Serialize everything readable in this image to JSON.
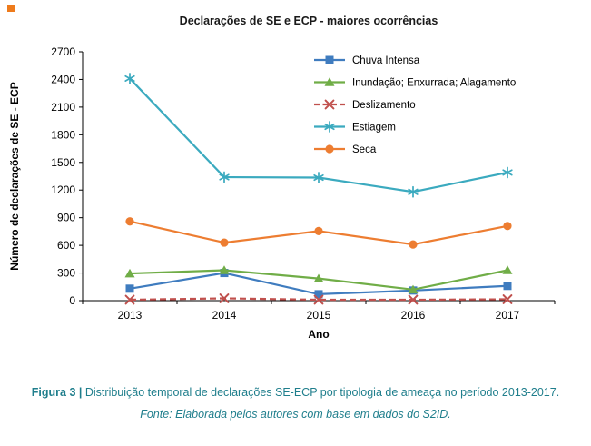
{
  "page": {
    "accent_square_color": "#EE7B1C"
  },
  "caption": {
    "label": "Figura 3 |",
    "text": "Distribuição temporal de declarações SE-ECP por tipologia de ameaça no período 2013-2017.",
    "source": "Fonte: Elaborada pelos autores com base em dados do S2ID.",
    "color": "#1F7E8C"
  },
  "chart_data": {
    "type": "line",
    "title": "Declarações de SE e ECP - maiores ocorrências",
    "xlabel": "Ano",
    "ylabel": "Número de declarações de SE - ECP",
    "categories": [
      "2013",
      "2014",
      "2015",
      "2016",
      "2017"
    ],
    "ylim": [
      0,
      2700
    ],
    "ytick_step": 300,
    "grid": false,
    "legend_position": "inside-top-right",
    "series": [
      {
        "name": "Chuva Intensa",
        "color": "#3F7CBF",
        "marker": "square",
        "line": "solid",
        "values": [
          130,
          300,
          70,
          110,
          160
        ]
      },
      {
        "name": "Inundação; Enxurrada; Alagamento",
        "color": "#70AD47",
        "marker": "triangle",
        "line": "solid",
        "values": [
          295,
          330,
          240,
          120,
          330
        ]
      },
      {
        "name": "Deslizamento",
        "color": "#C0504D",
        "marker": "x",
        "line": "dashed",
        "values": [
          10,
          25,
          10,
          10,
          15
        ]
      },
      {
        "name": "Estiagem",
        "color": "#3BAABF",
        "marker": "asterisk",
        "line": "solid",
        "values": [
          2410,
          1340,
          1335,
          1180,
          1390
        ]
      },
      {
        "name": "Seca",
        "color": "#ED7D31",
        "marker": "circle",
        "line": "solid",
        "values": [
          860,
          630,
          755,
          610,
          810
        ]
      }
    ]
  }
}
